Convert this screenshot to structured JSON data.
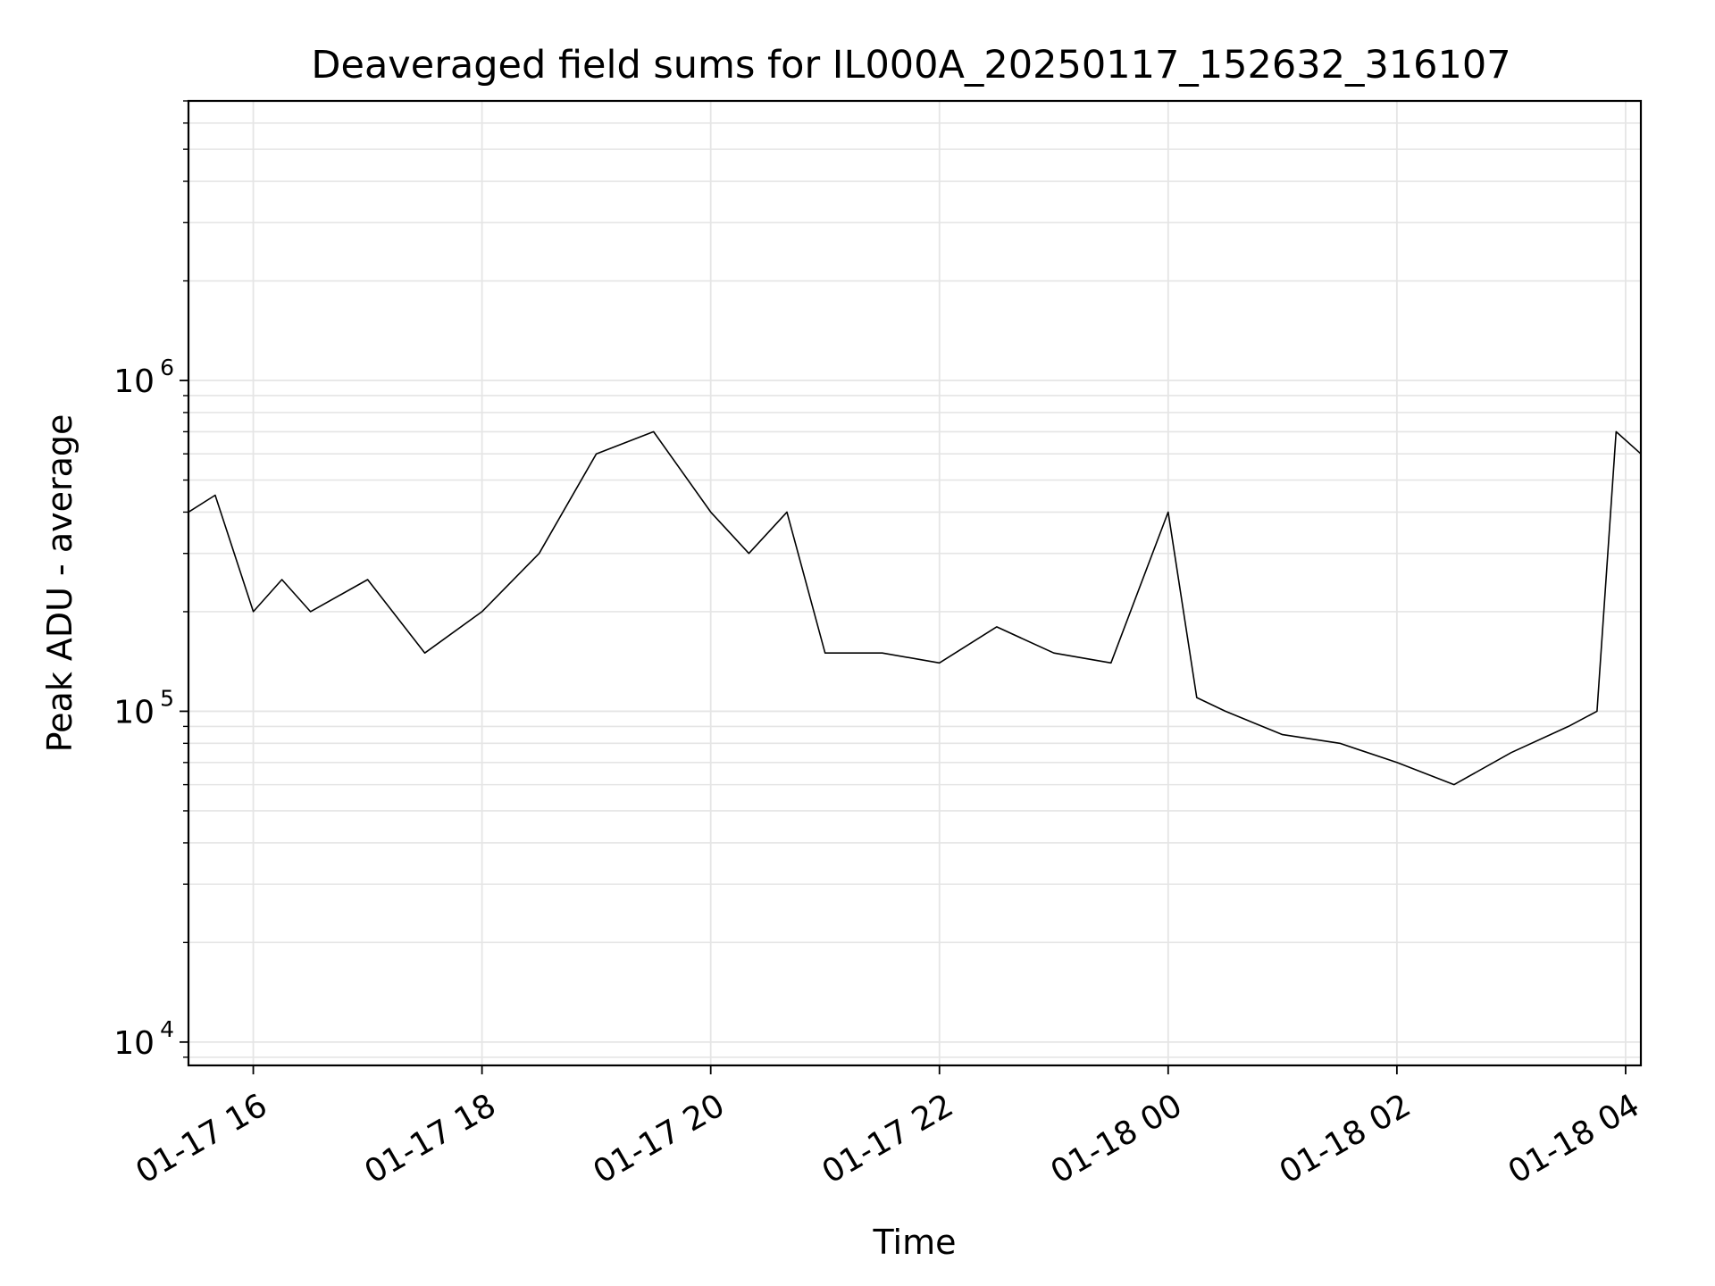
{
  "chart_data": {
    "type": "line",
    "title": "Deaveraged field sums for IL000A_20250117_152632_316107",
    "xlabel": "Time",
    "ylabel": "Peak ADU - average",
    "y_scale": "log",
    "ylim": [
      8500,
      7000000
    ],
    "xlim": [
      "2025-01-17T15:26",
      "2025-01-18T04:08"
    ],
    "grid": true,
    "line_color": "#000000",
    "grid_color": "#e5e5e5",
    "x_ticks": [
      {
        "value": "2025-01-17T16:00",
        "label": "01-17 16"
      },
      {
        "value": "2025-01-17T18:00",
        "label": "01-17 18"
      },
      {
        "value": "2025-01-17T20:00",
        "label": "01-17 20"
      },
      {
        "value": "2025-01-17T22:00",
        "label": "01-17 22"
      },
      {
        "value": "2025-01-18T00:00",
        "label": "01-18 00"
      },
      {
        "value": "2025-01-18T02:00",
        "label": "01-18 02"
      },
      {
        "value": "2025-01-18T04:00",
        "label": "01-18 04"
      }
    ],
    "y_ticks": [
      {
        "value": 10000,
        "base": "10",
        "exp": "4"
      },
      {
        "value": 100000,
        "base": "10",
        "exp": "5"
      },
      {
        "value": 1000000,
        "base": "10",
        "exp": "6"
      }
    ],
    "series": [
      {
        "x": [
          "2025-01-17T15:26",
          "2025-01-17T15:40",
          "2025-01-17T16:00",
          "2025-01-17T16:15",
          "2025-01-17T16:30",
          "2025-01-17T17:00",
          "2025-01-17T17:30",
          "2025-01-17T18:00",
          "2025-01-17T18:30",
          "2025-01-17T19:00",
          "2025-01-17T19:30",
          "2025-01-17T20:00",
          "2025-01-17T20:20",
          "2025-01-17T20:40",
          "2025-01-17T21:00",
          "2025-01-17T21:30",
          "2025-01-17T22:00",
          "2025-01-17T22:30",
          "2025-01-17T23:00",
          "2025-01-17T23:30",
          "2025-01-18T00:00",
          "2025-01-18T00:15",
          "2025-01-18T00:30",
          "2025-01-18T01:00",
          "2025-01-18T01:30",
          "2025-01-18T02:00",
          "2025-01-18T02:30",
          "2025-01-18T03:00",
          "2025-01-18T03:30",
          "2025-01-18T03:45",
          "2025-01-18T03:55",
          "2025-01-18T04:08"
        ],
        "values": [
          400000,
          450000,
          200000,
          250000,
          200000,
          250000,
          150000,
          200000,
          300000,
          600000,
          700000,
          400000,
          300000,
          400000,
          150000,
          150000,
          140000,
          180000,
          150000,
          140000,
          400000,
          110000,
          100000,
          85000,
          80000,
          70000,
          60000,
          75000,
          90000,
          100000,
          700000,
          600000
        ]
      }
    ]
  }
}
